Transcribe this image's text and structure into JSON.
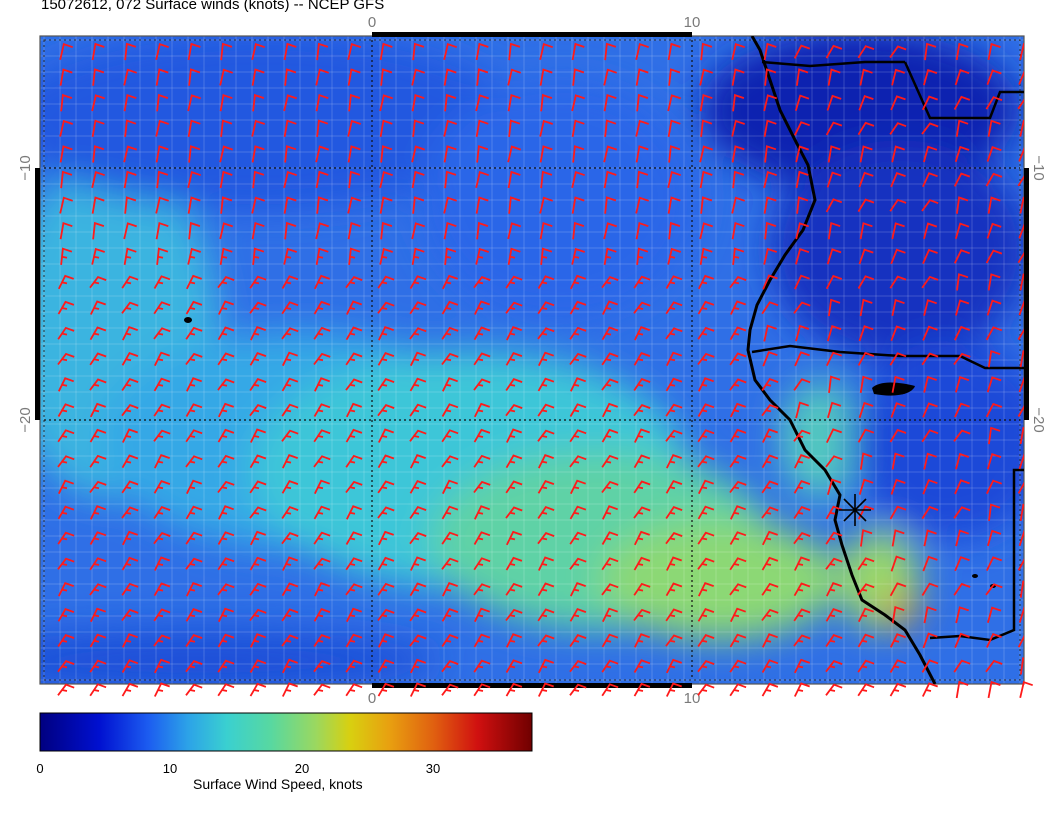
{
  "title": "15072612, 072 Surface winds (knots) -- NCEP GFS",
  "map": {
    "lon_ticks": [
      "0",
      "10"
    ],
    "lat_ticks": [
      "−10",
      "−20"
    ],
    "barb_color": "#ff1a1a",
    "marker": "asterisk-icon"
  },
  "colorbar": {
    "title": "Surface Wind Speed, knots",
    "ticks": [
      "0",
      "10",
      "20",
      "30"
    ],
    "range": [
      0,
      38
    ],
    "colors": [
      "#000080",
      "#0010d0",
      "#1c5cf0",
      "#2ca2e8",
      "#3ad0d0",
      "#58d8a0",
      "#9ad860",
      "#d8d010",
      "#e8a010",
      "#e06010",
      "#d01010",
      "#700000"
    ]
  }
}
